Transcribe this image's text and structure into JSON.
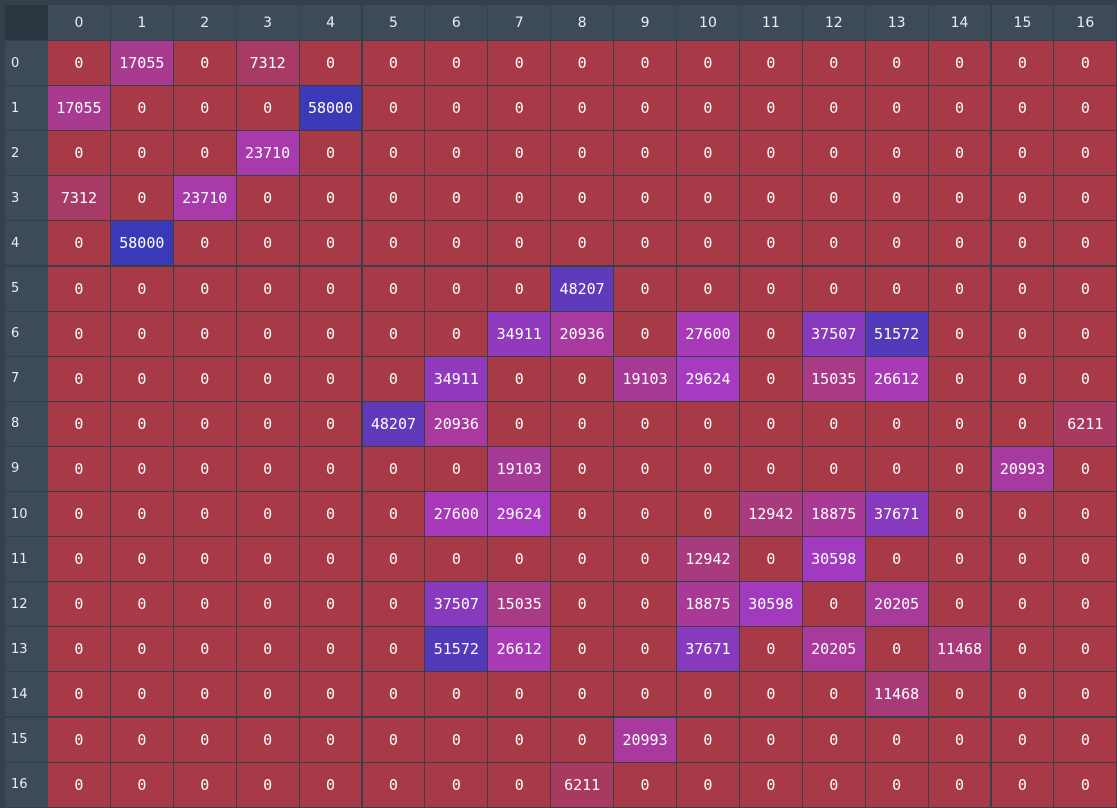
{
  "chart_data": {
    "type": "heatmap",
    "row_labels": [
      "0",
      "1",
      "2",
      "3",
      "4",
      "5",
      "6",
      "7",
      "8",
      "9",
      "10",
      "11",
      "12",
      "13",
      "14",
      "15",
      "16"
    ],
    "col_labels": [
      "0",
      "1",
      "2",
      "3",
      "4",
      "5",
      "6",
      "7",
      "8",
      "9",
      "10",
      "11",
      "12",
      "13",
      "14",
      "15",
      "16"
    ],
    "values": [
      [
        0,
        17055,
        0,
        7312,
        0,
        0,
        0,
        0,
        0,
        0,
        0,
        0,
        0,
        0,
        0,
        0,
        0
      ],
      [
        17055,
        0,
        0,
        0,
        58000,
        0,
        0,
        0,
        0,
        0,
        0,
        0,
        0,
        0,
        0,
        0,
        0
      ],
      [
        0,
        0,
        0,
        23710,
        0,
        0,
        0,
        0,
        0,
        0,
        0,
        0,
        0,
        0,
        0,
        0,
        0
      ],
      [
        7312,
        0,
        23710,
        0,
        0,
        0,
        0,
        0,
        0,
        0,
        0,
        0,
        0,
        0,
        0,
        0,
        0
      ],
      [
        0,
        58000,
        0,
        0,
        0,
        0,
        0,
        0,
        0,
        0,
        0,
        0,
        0,
        0,
        0,
        0,
        0
      ],
      [
        0,
        0,
        0,
        0,
        0,
        0,
        0,
        0,
        48207,
        0,
        0,
        0,
        0,
        0,
        0,
        0,
        0
      ],
      [
        0,
        0,
        0,
        0,
        0,
        0,
        0,
        34911,
        20936,
        0,
        27600,
        0,
        37507,
        51572,
        0,
        0,
        0
      ],
      [
        0,
        0,
        0,
        0,
        0,
        0,
        34911,
        0,
        0,
        19103,
        29624,
        0,
        15035,
        26612,
        0,
        0,
        0
      ],
      [
        0,
        0,
        0,
        0,
        0,
        48207,
        20936,
        0,
        0,
        0,
        0,
        0,
        0,
        0,
        0,
        0,
        6211
      ],
      [
        0,
        0,
        0,
        0,
        0,
        0,
        0,
        19103,
        0,
        0,
        0,
        0,
        0,
        0,
        0,
        20993,
        0
      ],
      [
        0,
        0,
        0,
        0,
        0,
        0,
        27600,
        29624,
        0,
        0,
        0,
        12942,
        18875,
        37671,
        0,
        0,
        0
      ],
      [
        0,
        0,
        0,
        0,
        0,
        0,
        0,
        0,
        0,
        0,
        12942,
        0,
        30598,
        0,
        0,
        0,
        0
      ],
      [
        0,
        0,
        0,
        0,
        0,
        0,
        37507,
        15035,
        0,
        0,
        18875,
        30598,
        0,
        20205,
        0,
        0,
        0
      ],
      [
        0,
        0,
        0,
        0,
        0,
        0,
        51572,
        26612,
        0,
        0,
        37671,
        0,
        20205,
        0,
        11468,
        0,
        0
      ],
      [
        0,
        0,
        0,
        0,
        0,
        0,
        0,
        0,
        0,
        0,
        0,
        0,
        0,
        11468,
        0,
        0,
        0
      ],
      [
        0,
        0,
        0,
        0,
        0,
        0,
        0,
        0,
        0,
        20993,
        0,
        0,
        0,
        0,
        0,
        0,
        0
      ],
      [
        0,
        0,
        0,
        0,
        0,
        0,
        0,
        0,
        6211,
        0,
        0,
        0,
        0,
        0,
        0,
        0,
        0
      ]
    ],
    "color_scale": {
      "min_value": 0,
      "max_value": 58000,
      "low_color": "#a83a48",
      "mid_color": "#a83ac0",
      "high_color": "#3a3ab8"
    },
    "grid": true
  }
}
